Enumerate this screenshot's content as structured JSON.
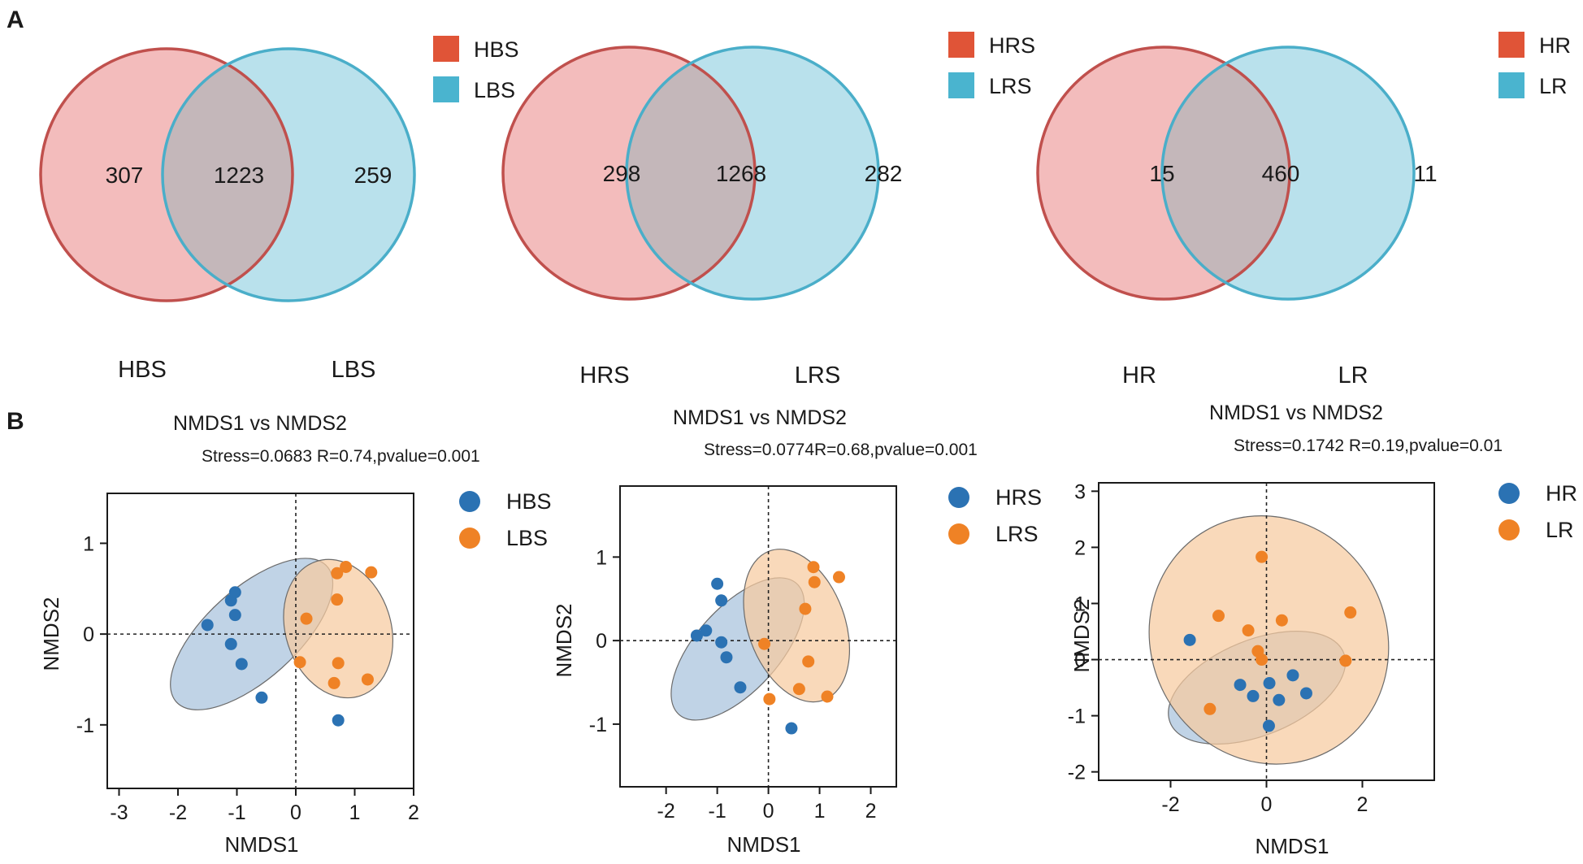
{
  "colors": {
    "high_fill": "#f3bcbc",
    "high_stroke": "#c0504d",
    "low_fill": "#b9e1ec",
    "low_stroke": "#4aaec9",
    "overlap_fill": "#c4b7ba",
    "legend_high": "#e05437",
    "legend_low": "#4ab4cf",
    "point_high": "#2b72b3",
    "point_low": "#ef8225",
    "ellipse_high": "#a7c2dd",
    "ellipse_low": "#f6caa0"
  },
  "panels": {
    "A": "A",
    "B": "B"
  },
  "chart_data": [
    {
      "type": "venn",
      "sets": [
        "HBS",
        "LBS"
      ],
      "legend": [
        "HBS",
        "LBS"
      ],
      "values": {
        "only_left": 307,
        "both": 1223,
        "only_right": 259
      }
    },
    {
      "type": "venn",
      "sets": [
        "HRS",
        "LRS"
      ],
      "legend": [
        "HRS",
        "LRS"
      ],
      "values": {
        "only_left": 298,
        "both": 1268,
        "only_right": 282
      }
    },
    {
      "type": "venn",
      "sets": [
        "HR",
        "LR"
      ],
      "legend": [
        "HR",
        "LR"
      ],
      "values": {
        "only_left": 15,
        "both": 460,
        "only_right": 11
      }
    },
    {
      "type": "scatter",
      "title": "NMDS1 vs NMDS2",
      "stats": "Stress=0.0683 R=0.74,pvalue=0.001",
      "xlabel": "NMDS1",
      "ylabel": "NMDS2",
      "xlim": [
        -3.2,
        2.0
      ],
      "ylim": [
        -1.7,
        1.55
      ],
      "xticks": [
        -3,
        -2,
        -1,
        0,
        1,
        2
      ],
      "yticks": [
        -1,
        0,
        1
      ],
      "legend": [
        "HBS",
        "LBS"
      ],
      "series": [
        {
          "name": "HBS",
          "points": [
            [
              -1.5,
              0.1
            ],
            [
              -1.1,
              0.37
            ],
            [
              -1.03,
              0.46
            ],
            [
              -1.03,
              0.21
            ],
            [
              -1.1,
              -0.11
            ],
            [
              -0.92,
              -0.33
            ],
            [
              -0.58,
              -0.7
            ],
            [
              0.72,
              -0.95
            ]
          ],
          "ellipse": {
            "cx": -0.75,
            "cy": 0.0,
            "rx": 1.72,
            "ry": 0.5,
            "angle_deg": -42
          }
        },
        {
          "name": "LBS",
          "points": [
            [
              0.18,
              0.17
            ],
            [
              0.07,
              -0.31
            ],
            [
              0.7,
              0.67
            ],
            [
              0.85,
              0.74
            ],
            [
              1.28,
              0.68
            ],
            [
              0.7,
              0.38
            ],
            [
              0.72,
              -0.32
            ],
            [
              0.65,
              -0.54
            ],
            [
              1.22,
              -0.5
            ]
          ],
          "ellipse": {
            "cx": 0.72,
            "cy": 0.06,
            "rx": 1.2,
            "ry": 0.58,
            "angle_deg": 72
          }
        }
      ]
    },
    {
      "type": "scatter",
      "title": "NMDS1 vs NMDS2",
      "stats": "Stress=0.0774R=0.68,pvalue=0.001",
      "xlabel": "NMDS1",
      "ylabel": "NMDS2",
      "xlim": [
        -2.9,
        2.5
      ],
      "ylim": [
        -1.75,
        1.85
      ],
      "xticks": [
        -2,
        -1,
        0,
        1,
        2
      ],
      "yticks": [
        -1,
        0,
        1
      ],
      "legend": [
        "HRS",
        "LRS"
      ],
      "series": [
        {
          "name": "HRS",
          "points": [
            [
              -1.4,
              0.06
            ],
            [
              -1.22,
              0.12
            ],
            [
              -1.0,
              0.68
            ],
            [
              -0.92,
              0.48
            ],
            [
              -0.92,
              -0.02
            ],
            [
              -0.82,
              -0.2
            ],
            [
              -0.55,
              -0.56
            ],
            [
              0.45,
              -1.05
            ]
          ],
          "ellipse": {
            "cx": -0.6,
            "cy": -0.1,
            "rx": 1.72,
            "ry": 0.5,
            "angle_deg": -48
          }
        },
        {
          "name": "LRS",
          "points": [
            [
              -0.08,
              -0.04
            ],
            [
              0.02,
              -0.7
            ],
            [
              0.88,
              0.88
            ],
            [
              0.9,
              0.7
            ],
            [
              1.38,
              0.76
            ],
            [
              0.72,
              0.38
            ],
            [
              0.78,
              -0.25
            ],
            [
              0.6,
              -0.58
            ],
            [
              1.15,
              -0.67
            ]
          ],
          "ellipse": {
            "cx": 0.55,
            "cy": 0.18,
            "rx": 1.55,
            "ry": 0.58,
            "angle_deg": 70
          }
        }
      ]
    },
    {
      "type": "scatter",
      "title": "NMDS1 vs NMDS2",
      "stats": "Stress=0.1742 R=0.19,pvalue=0.01",
      "xlabel": "NMDS1",
      "ylabel": "NMDS2",
      "xlim": [
        -3.5,
        3.5
      ],
      "ylim": [
        -2.15,
        3.15
      ],
      "xticks": [
        -2,
        0,
        2
      ],
      "yticks": [
        -2,
        -1,
        0,
        1,
        2,
        3
      ],
      "legend": [
        "HR",
        "LR"
      ],
      "series": [
        {
          "name": "HR",
          "points": [
            [
              -1.6,
              0.35
            ],
            [
              -0.55,
              -0.45
            ],
            [
              -0.28,
              -0.65
            ],
            [
              0.06,
              -0.42
            ],
            [
              0.26,
              -0.72
            ],
            [
              0.55,
              -0.28
            ],
            [
              0.83,
              -0.6
            ],
            [
              0.05,
              -1.18
            ]
          ],
          "ellipse": {
            "cx": -0.2,
            "cy": -0.5,
            "rx": 1.95,
            "ry": 0.85,
            "angle_deg": -22
          }
        },
        {
          "name": "LR",
          "points": [
            [
              -0.1,
              1.83
            ],
            [
              -1.0,
              0.78
            ],
            [
              -0.38,
              0.52
            ],
            [
              0.32,
              0.7
            ],
            [
              1.75,
              0.84
            ],
            [
              -0.18,
              0.15
            ],
            [
              -0.1,
              0.0
            ],
            [
              1.65,
              -0.02
            ],
            [
              -1.18,
              -0.88
            ]
          ],
          "ellipse": {
            "cx": 0.05,
            "cy": 0.35,
            "rx": 2.45,
            "ry": 2.25,
            "angle_deg": -30
          }
        }
      ]
    }
  ]
}
